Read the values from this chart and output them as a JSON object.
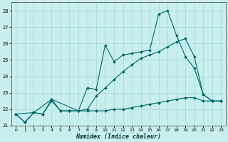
{
  "xlabel": "Humidex (Indice chaleur)",
  "background_color": "#c8eeee",
  "grid_color": "#aadddd",
  "line_color": "#006666",
  "xlim": [
    -0.5,
    23.5
  ],
  "ylim": [
    21.0,
    28.5
  ],
  "yticks": [
    21,
    22,
    23,
    24,
    25,
    26,
    27,
    28
  ],
  "xticks": [
    0,
    1,
    2,
    3,
    4,
    5,
    6,
    7,
    8,
    9,
    10,
    11,
    12,
    13,
    14,
    15,
    16,
    17,
    18,
    19,
    20,
    21,
    22,
    23
  ],
  "series1_x": [
    0,
    1,
    2,
    3,
    4,
    5,
    6,
    7,
    8,
    9,
    10,
    11,
    12,
    13,
    14,
    15,
    16,
    17,
    18,
    19,
    20,
    21,
    22,
    23
  ],
  "series1_y": [
    21.7,
    21.2,
    21.8,
    21.7,
    22.6,
    21.9,
    21.9,
    21.9,
    23.3,
    23.2,
    25.9,
    24.9,
    25.3,
    25.4,
    25.5,
    25.6,
    27.8,
    28.0,
    26.5,
    25.2,
    24.5,
    22.9,
    22.5,
    22.5
  ],
  "series2_x": [
    0,
    2,
    4,
    7,
    8,
    9,
    10,
    11,
    12,
    13,
    14,
    15,
    16,
    17,
    18,
    19,
    20,
    21,
    22,
    23
  ],
  "series2_y": [
    21.7,
    21.8,
    22.6,
    21.9,
    22.0,
    22.8,
    23.3,
    23.8,
    24.3,
    24.7,
    25.1,
    25.3,
    25.5,
    25.8,
    26.1,
    26.3,
    25.2,
    22.9,
    22.5,
    22.5
  ],
  "series3_x": [
    0,
    1,
    2,
    3,
    4,
    5,
    6,
    7,
    8,
    9,
    10,
    11,
    12,
    13,
    14,
    15,
    16,
    17,
    18,
    19,
    20,
    21,
    22,
    23
  ],
  "series3_y": [
    21.7,
    21.2,
    21.8,
    21.7,
    22.5,
    21.9,
    21.9,
    21.9,
    21.9,
    21.9,
    21.9,
    22.0,
    22.0,
    22.1,
    22.2,
    22.3,
    22.4,
    22.5,
    22.6,
    22.7,
    22.7,
    22.5,
    22.5,
    22.5
  ]
}
